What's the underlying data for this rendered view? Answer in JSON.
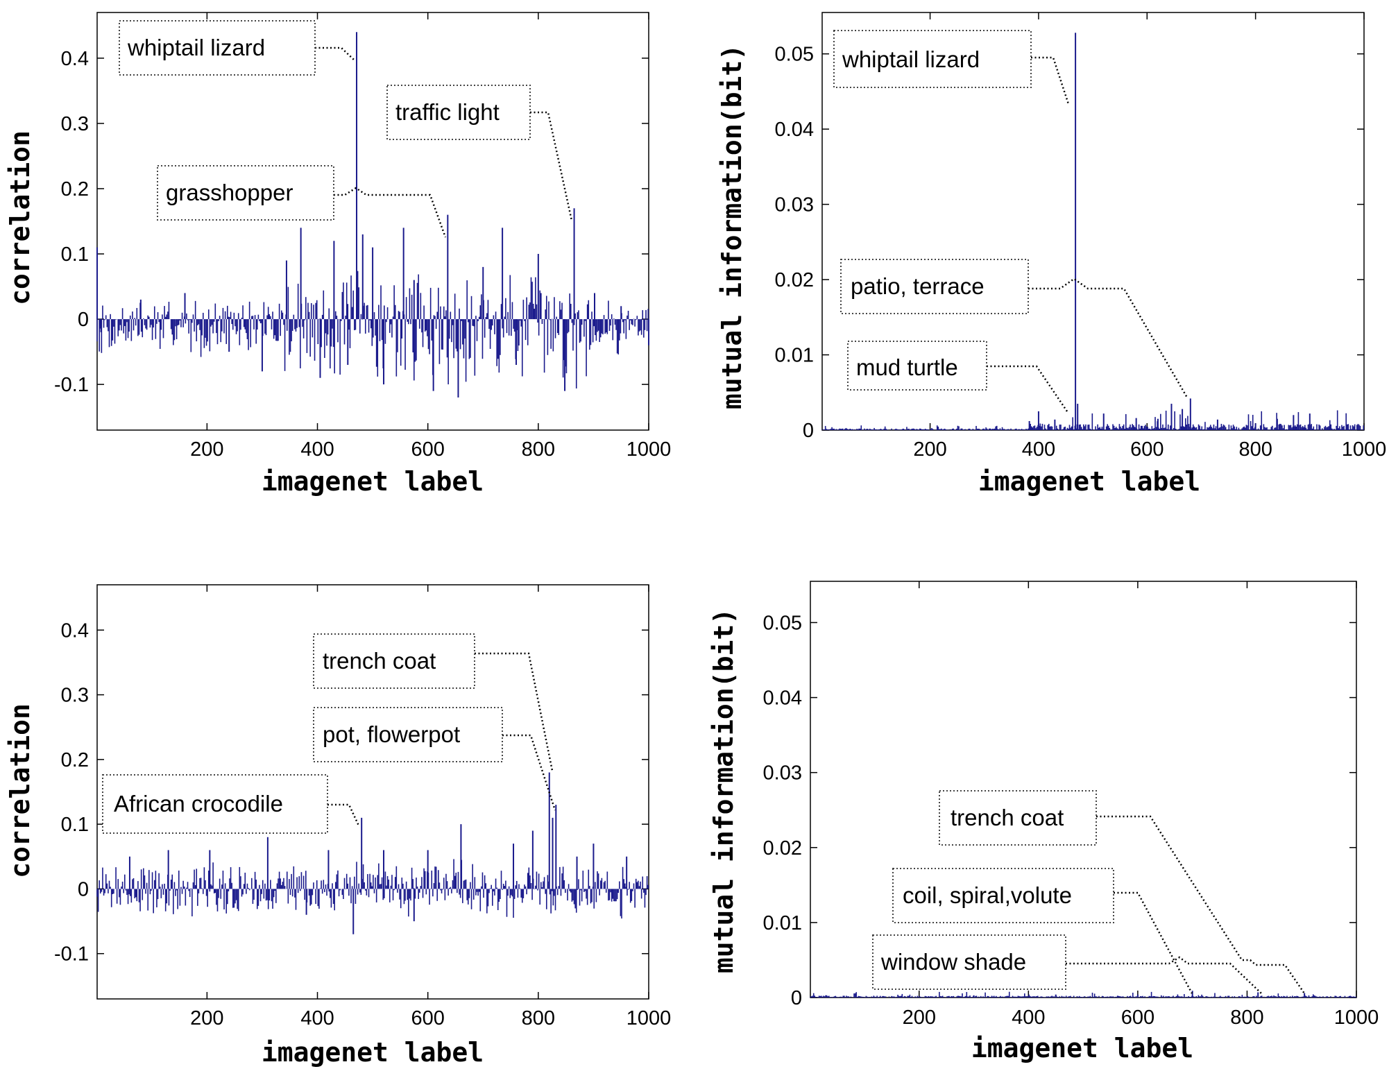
{
  "chart_data": [
    {
      "type": "bar",
      "xlabel": "imagenet label",
      "ylabel": "correlation",
      "xlim": [
        1,
        1000
      ],
      "ylim": [
        -0.17,
        0.47
      ],
      "xticks": [
        200,
        400,
        600,
        800,
        1000
      ],
      "yticks": [
        -0.1,
        0,
        0.1,
        0.2,
        0.3,
        0.4
      ],
      "ytick_labels": [
        "-0.1",
        "0",
        "0.1",
        "0.2",
        "0.3",
        "0.4"
      ],
      "color": "#1a1a8c",
      "series_x": [
        1,
        8,
        80,
        160,
        240,
        300,
        344,
        370,
        405,
        430,
        455,
        471,
        482,
        500,
        520,
        556,
        575,
        610,
        636,
        655,
        700,
        735,
        760,
        800,
        848,
        865,
        902,
        950,
        1000
      ],
      "series_y": [
        0.11,
        -0.02,
        0.03,
        0.04,
        -0.05,
        -0.08,
        0.09,
        0.14,
        -0.09,
        0.12,
        -0.07,
        0.44,
        0.13,
        0.11,
        -0.1,
        0.14,
        0.06,
        -0.11,
        0.16,
        -0.12,
        0.08,
        0.14,
        -0.07,
        0.1,
        -0.11,
        0.17,
        0.04,
        0.02,
        -0.04
      ],
      "annotations": [
        {
          "text": "whiptail lizard",
          "x": 468,
          "y": 0.39
        },
        {
          "text": "grasshopper",
          "x": 632,
          "y": 0.12
        },
        {
          "text": "traffic light",
          "x": 865,
          "y": 0.15
        }
      ]
    },
    {
      "type": "bar",
      "xlabel": "imagenet label",
      "ylabel": "mutual information(bit)",
      "xlim": [
        1,
        1000
      ],
      "ylim": [
        0,
        0.0555
      ],
      "xticks": [
        200,
        400,
        600,
        800,
        1000
      ],
      "yticks": [
        0,
        0.01,
        0.02,
        0.03,
        0.04,
        0.05
      ],
      "ytick_labels": [
        "0",
        "0.01",
        "0.02",
        "0.03",
        "0.04",
        "0.05"
      ],
      "color": "#1a1a8c",
      "series_x": [
        383,
        400,
        430,
        468,
        472,
        520,
        580,
        620,
        645,
        665,
        680,
        730,
        800,
        840,
        870,
        900
      ],
      "series_y": [
        0.0012,
        0.0025,
        0.0014,
        0.0528,
        0.0035,
        0.0022,
        0.0016,
        0.0015,
        0.0035,
        0.0028,
        0.0042,
        0.0014,
        0.0009,
        0.0015,
        0.002,
        0.0022
      ],
      "annotations": [
        {
          "text": "whiptail lizard",
          "x": 468,
          "y": 0.043
        },
        {
          "text": "patio, terrace",
          "x": 680,
          "y": 0.0035
        },
        {
          "text": "mud turtle",
          "x": 462,
          "y": 0.002
        }
      ]
    },
    {
      "type": "bar",
      "xlabel": "imagenet label",
      "ylabel": "correlation",
      "xlim": [
        1,
        1000
      ],
      "ylim": [
        -0.17,
        0.47
      ],
      "xticks": [
        200,
        400,
        600,
        800,
        1000
      ],
      "yticks": [
        -0.1,
        0,
        0.1,
        0.2,
        0.3,
        0.4
      ],
      "ytick_labels": [
        "-0.1",
        "0",
        "0.1",
        "0.2",
        "0.3",
        "0.4"
      ],
      "color": "#1a1a8c",
      "series_x": [
        60,
        130,
        205,
        310,
        380,
        420,
        465,
        480,
        520,
        575,
        600,
        660,
        755,
        790,
        820,
        826,
        832,
        870,
        900,
        960
      ],
      "series_y": [
        0.05,
        0.06,
        0.06,
        0.08,
        -0.04,
        0.06,
        -0.07,
        0.11,
        0.06,
        -0.05,
        0.06,
        0.1,
        0.07,
        0.09,
        0.18,
        0.11,
        0.13,
        0.05,
        0.07,
        0.05
      ],
      "annotations": [
        {
          "text": "trench coat",
          "x": 826,
          "y": 0.18
        },
        {
          "text": "pot, flowerpot",
          "x": 830,
          "y": 0.1
        },
        {
          "text": "African crocodile",
          "x": 478,
          "y": 0.1
        }
      ]
    },
    {
      "type": "bar",
      "xlabel": "imagenet label",
      "ylabel": "mutual information(bit)",
      "xlim": [
        1,
        1000
      ],
      "ylim": [
        0,
        0.0555
      ],
      "xticks": [
        200,
        400,
        600,
        800,
        1000
      ],
      "yticks": [
        0,
        0.01,
        0.02,
        0.03,
        0.04,
        0.05
      ],
      "ytick_labels": [
        "0",
        "0.01",
        "0.02",
        "0.03",
        "0.04",
        "0.05"
      ],
      "color": "#1a1a8c",
      "series_x": [
        150,
        300,
        450,
        600,
        700,
        820,
        905
      ],
      "series_y": [
        0.0002,
        0.0003,
        0.0004,
        0.0004,
        0.0009,
        0.0007,
        0.0006
      ],
      "annotations": [
        {
          "text": "trench coat",
          "x": 905,
          "y": 0.0006
        },
        {
          "text": "coil, spiral,volute",
          "x": 700,
          "y": 0.0009
        },
        {
          "text": "window shade",
          "x": 820,
          "y": 0.0007
        }
      ]
    }
  ]
}
